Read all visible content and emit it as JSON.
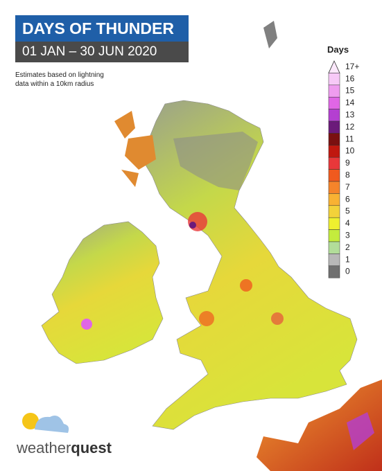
{
  "header": {
    "title": "DAYS OF THUNDER",
    "dates": "01 JAN – 30 JUN 2020"
  },
  "note": {
    "lines": [
      "Estimates based on lightning",
      "data within a 10km radius"
    ]
  },
  "legend": {
    "title": "Days",
    "items": [
      {
        "label": "17+",
        "color": "#fbe8fb"
      },
      {
        "label": "16",
        "color": "#f7c9f7"
      },
      {
        "label": "15",
        "color": "#ef9cef"
      },
      {
        "label": "14",
        "color": "#e066e6"
      },
      {
        "label": "13",
        "color": "#b43fd1"
      },
      {
        "label": "12",
        "color": "#6b1a7a"
      },
      {
        "label": "11",
        "color": "#7a1010"
      },
      {
        "label": "10",
        "color": "#c0180f"
      },
      {
        "label": "9",
        "color": "#e8383a"
      },
      {
        "label": "8",
        "color": "#f05a1e"
      },
      {
        "label": "7",
        "color": "#f5842a"
      },
      {
        "label": "6",
        "color": "#f9b233"
      },
      {
        "label": "5",
        "color": "#f3d23a"
      },
      {
        "label": "4",
        "color": "#eef02f"
      },
      {
        "label": "3",
        "color": "#c4ec3d"
      },
      {
        "label": "2",
        "color": "#b2dd9a"
      },
      {
        "label": "1",
        "color": "#b8b8b8"
      },
      {
        "label": "0",
        "color": "#707070"
      }
    ]
  },
  "logo": {
    "word1": "weather",
    "word2": "quest"
  }
}
